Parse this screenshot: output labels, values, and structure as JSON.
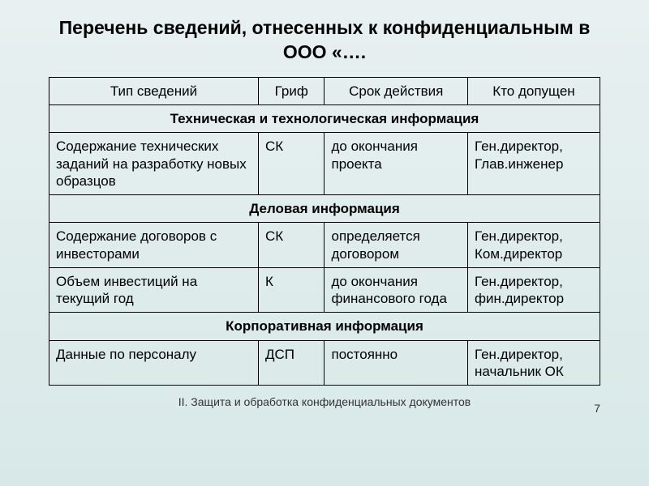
{
  "title": "Перечень сведений, отнесенных к конфиденциальным в ООО «….",
  "headers": {
    "col1": "Тип сведений",
    "col2": "Гриф",
    "col3": "Срок действия",
    "col4": "Кто допущен"
  },
  "sections": {
    "tech": "Техническая и технологическая информация",
    "business": "Деловая информация",
    "corporate": "Корпоративная информация"
  },
  "rows": {
    "r1": {
      "c1": "Содержание технических заданий на разработку новых образцов",
      "c2": "СК",
      "c3": "до окончания проекта",
      "c4": "Ген.директор, Глав.инженер"
    },
    "r2": {
      "c1": "Содержание договоров с инвесторами",
      "c2": "СК",
      "c3": "определяется договором",
      "c4": "Ген.директор, Ком.директор"
    },
    "r3": {
      "c1": "Объем инвестиций на текущий год",
      "c2": "К",
      "c3": "до окончания финансового года",
      "c4": "Ген.директор, фин.директор"
    },
    "r4": {
      "c1": "Данные по персоналу",
      "c2": "ДСП",
      "c3": "постоянно",
      "c4": "Ген.директор, начальник ОК"
    }
  },
  "footer": "II. Защита и обработка конфиденциальных документов",
  "pageNumber": "7",
  "styling": {
    "type": "table",
    "background_gradient_top": "#e8f0f0",
    "background_gradient_bottom": "#d8e8e8",
    "border_color": "#000000",
    "title_fontsize": 23,
    "title_weight": "bold",
    "cell_fontsize": 17,
    "footer_fontsize": 14,
    "text_color": "#000000",
    "col_widths_percent": [
      38,
      12,
      26,
      24
    ],
    "font_family": "Arial"
  }
}
